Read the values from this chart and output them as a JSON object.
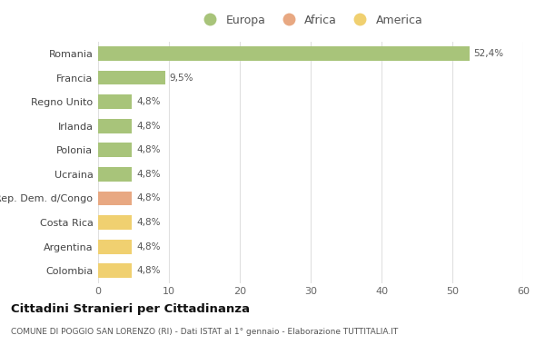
{
  "categories": [
    "Romania",
    "Francia",
    "Regno Unito",
    "Irlanda",
    "Polonia",
    "Ucraina",
    "Rep. Dem. d/Congo",
    "Costa Rica",
    "Argentina",
    "Colombia"
  ],
  "values": [
    52.4,
    9.5,
    4.8,
    4.8,
    4.8,
    4.8,
    4.8,
    4.8,
    4.8,
    4.8
  ],
  "labels": [
    "52,4%",
    "9,5%",
    "4,8%",
    "4,8%",
    "4,8%",
    "4,8%",
    "4,8%",
    "4,8%",
    "4,8%",
    "4,8%"
  ],
  "colors": [
    "#a8c47a",
    "#a8c47a",
    "#a8c47a",
    "#a8c47a",
    "#a8c47a",
    "#a8c47a",
    "#e8a882",
    "#f0d070",
    "#f0d070",
    "#f0d070"
  ],
  "continent_colors": {
    "Europa": "#a8c47a",
    "Africa": "#e8a882",
    "America": "#f0d070"
  },
  "legend_labels": [
    "Europa",
    "Africa",
    "America"
  ],
  "xlim": [
    0,
    60
  ],
  "xticks": [
    0,
    10,
    20,
    30,
    40,
    50,
    60
  ],
  "title": "Cittadini Stranieri per Cittadinanza",
  "subtitle": "COMUNE DI POGGIO SAN LORENZO (RI) - Dati ISTAT al 1° gennaio - Elaborazione TUTTITALIA.IT",
  "background_color": "#ffffff",
  "grid_color": "#e0e0e0",
  "bar_height": 0.6
}
